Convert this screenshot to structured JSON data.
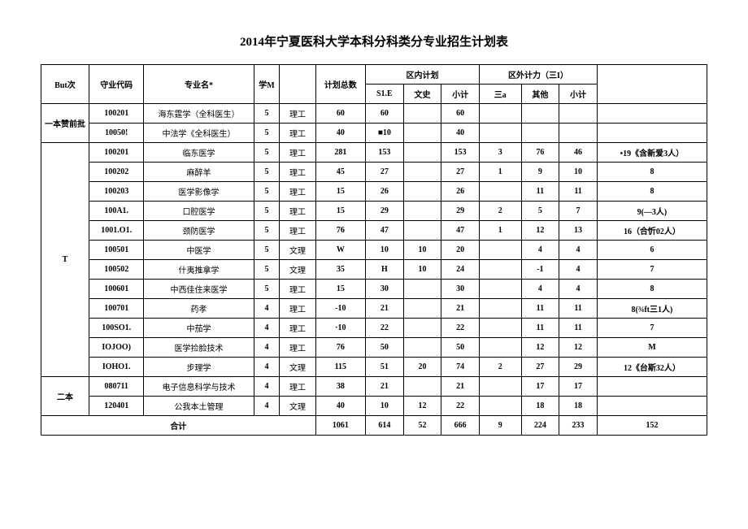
{
  "title": "2014年宁夏医科大学本科分科类分专业招生计划表",
  "headers": {
    "batch": "But次",
    "code": "守业代码",
    "name": "专业名*",
    "xuem": "学M",
    "plan_total": "计划总数",
    "in_region": "区内计划",
    "out_region": "区外计力（三I）",
    "s1e": "S1.E",
    "wenshi": "文史",
    "xiaoji": "小计",
    "sana": "三a",
    "qita": "其他",
    "xiaoji2": "小计"
  },
  "batches": {
    "pre": "一本赞前批",
    "t": "T",
    "erben": "二本"
  },
  "rows": [
    [
      "100201",
      "海东霆学（全科医生）",
      "5",
      "理工",
      "60",
      "60",
      "",
      "60",
      "",
      "",
      "",
      ""
    ],
    [
      "10050!",
      "中法学《全科医生）",
      "5",
      "理工",
      "40",
      "■10",
      "",
      "40",
      "",
      "",
      "",
      ""
    ],
    [
      "100201",
      "临东医学",
      "5",
      "理工",
      "281",
      "153",
      "",
      "153",
      "3",
      "76",
      "46",
      "•19《含新爱3人）"
    ],
    [
      "100202",
      "麻醉羊",
      "5",
      "理工",
      "45",
      "27",
      "",
      "27",
      "1",
      "9",
      "10",
      "8"
    ],
    [
      "100203",
      "医学影像学",
      "5",
      "理工",
      "15",
      "26",
      "",
      "26",
      "",
      "11",
      "11",
      "8"
    ],
    [
      "100A1.",
      "口腔医学",
      "5",
      "理工",
      "15",
      "29",
      "",
      "29",
      "2",
      "5",
      "7",
      "9(—3人)"
    ],
    [
      "1001.O1.",
      "颈防医学",
      "5",
      "理工",
      "76",
      "47",
      "",
      "47",
      "1",
      "12",
      "13",
      "16（合忻02人）"
    ],
    [
      "100501",
      "中医学",
      "5",
      "文理",
      "W",
      "10",
      "10",
      "20",
      "",
      "4",
      "4",
      "6"
    ],
    [
      "100502",
      "什夷推拿学",
      "5",
      "文理",
      "35",
      "H",
      "10",
      "24",
      "",
      "-1",
      "4",
      "7"
    ],
    [
      "100601",
      "中西佳住来医学",
      "5",
      "理工",
      "15",
      "30",
      "",
      "30",
      "",
      "4",
      "4",
      "8"
    ],
    [
      "100701",
      "药孝",
      "4",
      "理工",
      "-10",
      "21",
      "",
      "21",
      "",
      "11",
      "11",
      "8(¾ft三1人)"
    ],
    [
      "100SO1.",
      "中茄学",
      "4",
      "理工",
      "·10",
      "22",
      "",
      "22",
      "",
      "11",
      "11",
      "7"
    ],
    [
      "IOJOO)",
      "医学捡脸技术",
      "4",
      "理工",
      "76",
      "50",
      "",
      "50",
      "",
      "12",
      "12",
      "M"
    ],
    [
      "IOHO1.",
      "步理学",
      "4",
      "文理",
      "115",
      "51",
      "20",
      "74",
      "2",
      "27",
      "29",
      "12《台斯32人）"
    ],
    [
      "080711",
      "电子信息科学与技术",
      "4",
      "理工",
      "38",
      "21",
      "",
      "21",
      "",
      "17",
      "17",
      ""
    ],
    [
      "120401",
      "公我本土管理",
      "4",
      "文理",
      "40",
      "10",
      "12",
      "22",
      "",
      "18",
      "18",
      ""
    ]
  ],
  "total": {
    "label": "合计",
    "cells": [
      "1061",
      "614",
      "52",
      "666",
      "9",
      "224",
      "233",
      "152"
    ]
  }
}
